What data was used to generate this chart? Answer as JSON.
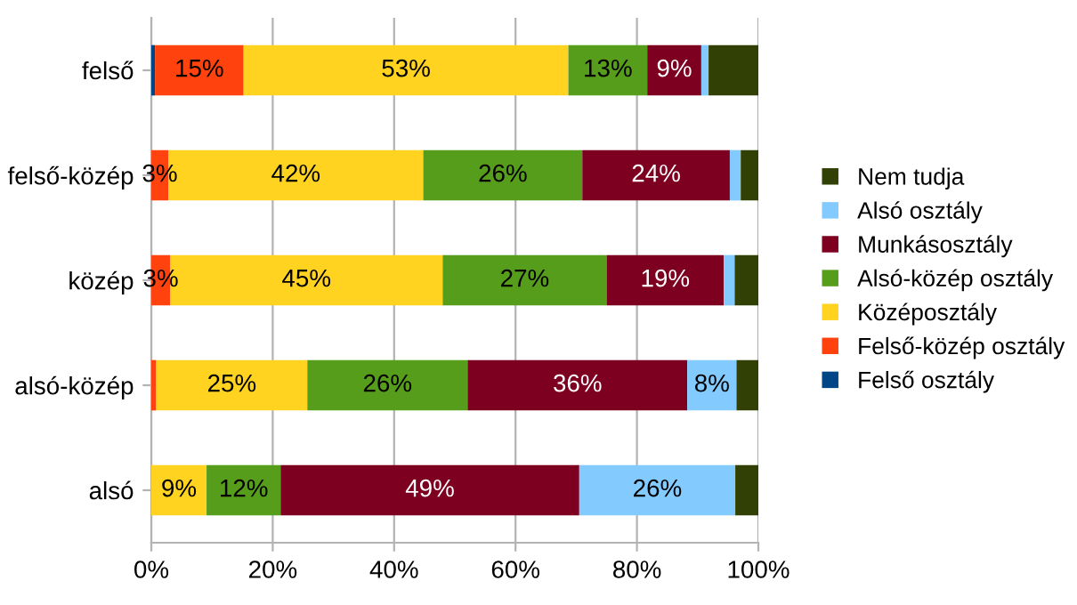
{
  "chart_data": {
    "type": "bar",
    "orientation": "horizontal",
    "stacked": true,
    "categories": [
      "felső",
      "felső-közép",
      "közép",
      "alsó-közép",
      "alsó"
    ],
    "series": [
      {
        "name": "Felső osztály",
        "color": "#004586",
        "values": [
          0.6,
          0,
          0,
          0,
          0
        ],
        "value_labels": [
          null,
          null,
          null,
          null,
          null
        ]
      },
      {
        "name": "Felső-közép osztály",
        "color": "#ff420e",
        "values": [
          14.6,
          2.8,
          3.1,
          0.8,
          0
        ],
        "value_labels": [
          "15%",
          "3%",
          "3%",
          null,
          null
        ]
      },
      {
        "name": "Középosztály",
        "color": "#ffd320",
        "values": [
          53.5,
          42,
          44.9,
          24.9,
          9.1
        ],
        "value_labels": [
          "53%",
          "42%",
          "45%",
          "25%",
          "9%"
        ]
      },
      {
        "name": "Alsó-közép osztály",
        "color": "#579d1c",
        "values": [
          13,
          26.2,
          27,
          26.4,
          12.2
        ],
        "value_labels": [
          "13%",
          "26%",
          "27%",
          "26%",
          "12%"
        ]
      },
      {
        "name": "Munkásosztály",
        "color": "#7e0021",
        "values": [
          8.9,
          24.3,
          19.3,
          36.2,
          49.2
        ],
        "value_labels": [
          "9%",
          "24%",
          "19%",
          "36%",
          "49%"
        ]
      },
      {
        "name": "Alsó osztály",
        "color": "#83caff",
        "values": [
          1.2,
          1.8,
          1.8,
          8.1,
          25.7
        ],
        "value_labels": [
          null,
          null,
          null,
          "8%",
          "26%"
        ]
      },
      {
        "name": "Nem tudja",
        "color": "#314004",
        "values": [
          8.2,
          2.9,
          3.9,
          3.6,
          3.8
        ],
        "value_labels": [
          null,
          null,
          null,
          null,
          null
        ]
      }
    ],
    "xlim": [
      0,
      100
    ],
    "xticks": [
      {
        "value": 0,
        "label": "0%"
      },
      {
        "value": 20,
        "label": "20%"
      },
      {
        "value": 40,
        "label": "40%"
      },
      {
        "value": 60,
        "label": "60%"
      },
      {
        "value": 80,
        "label": "80%"
      },
      {
        "value": 100,
        "label": "100%"
      }
    ],
    "grid": "x",
    "legend": "right"
  }
}
